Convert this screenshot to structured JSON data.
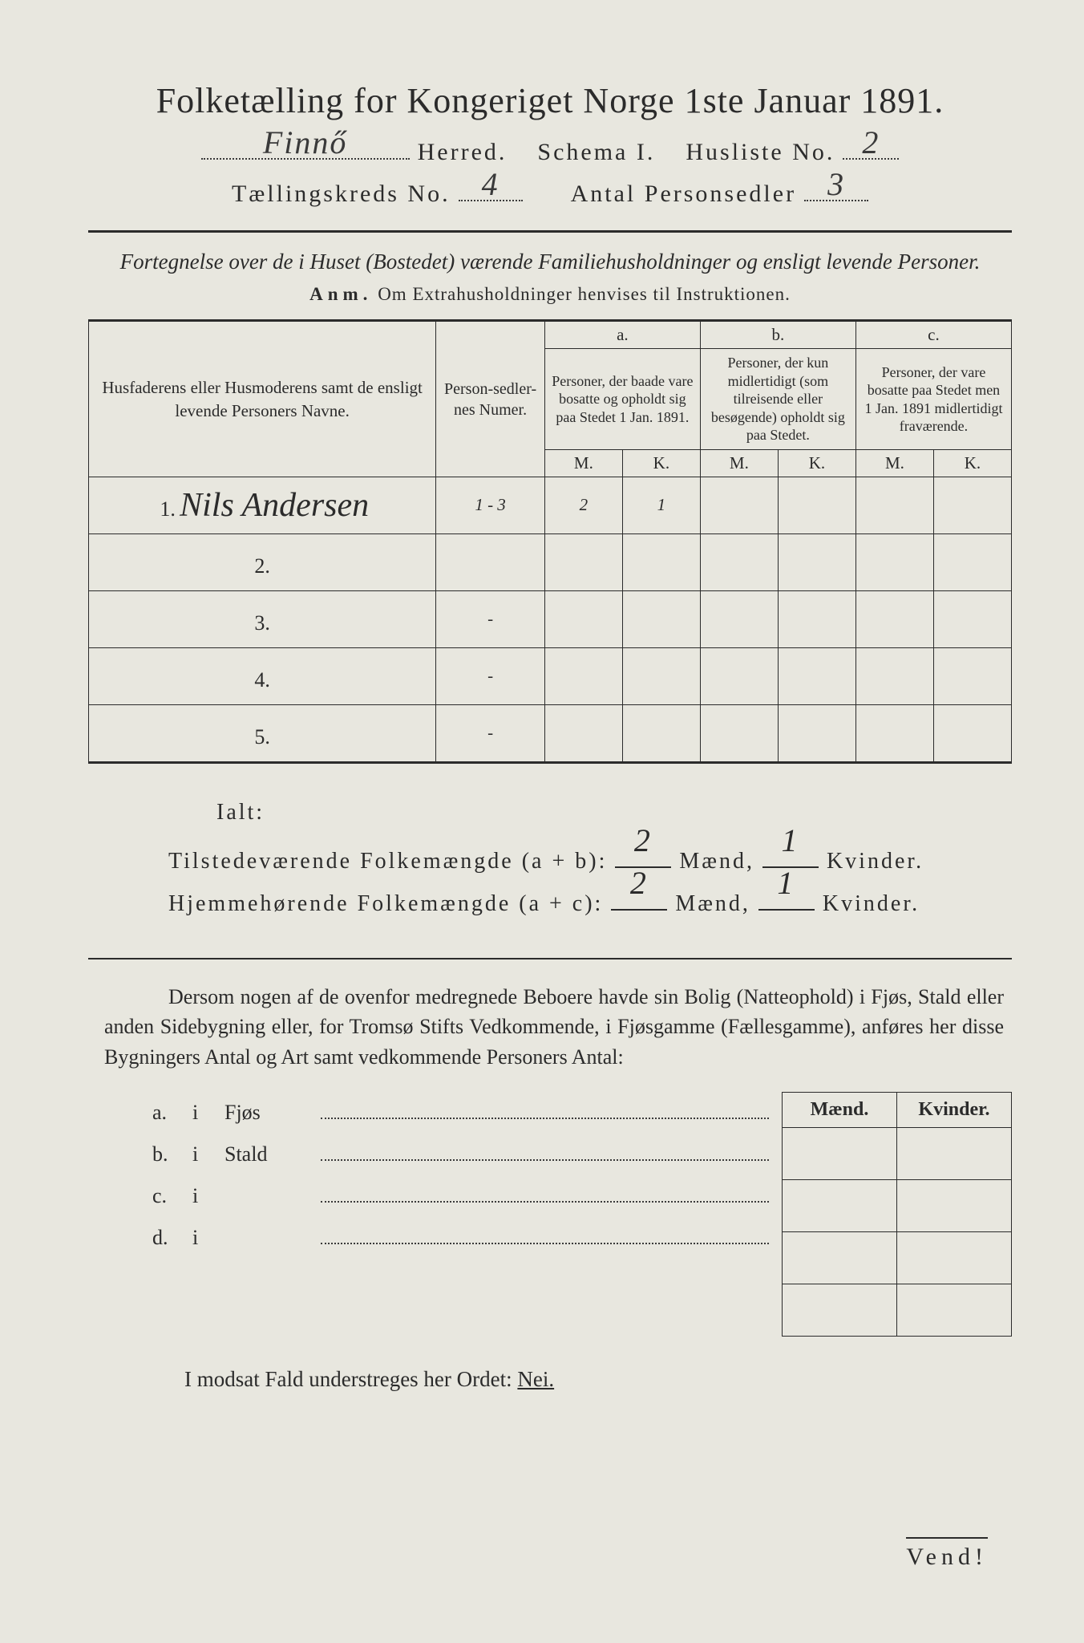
{
  "title": "Folketælling for Kongeriget Norge 1ste Januar 1891.",
  "header": {
    "herred_value": "Finnő",
    "herred_label": "Herred.",
    "schema_label": "Schema I.",
    "husliste_label": "Husliste No.",
    "husliste_value": "2",
    "kreds_label": "Tællingskreds No.",
    "kreds_value": "4",
    "antal_label": "Antal Personsedler",
    "antal_value": "3"
  },
  "subtitle": "Fortegnelse over de i Huset (Bostedet) værende Familiehusholdninger og ensligt levende Personer.",
  "anm_label": "Anm.",
  "anm_text": "Om Extrahusholdninger henvises til Instruktionen.",
  "table": {
    "col_names": "Husfaderens eller Husmoderens samt de ensligt levende Personers Navne.",
    "col_numer": "Person-sedler-nes Numer.",
    "col_a_label": "a.",
    "col_a_text": "Personer, der baade vare bosatte og opholdt sig paa Stedet 1 Jan. 1891.",
    "col_b_label": "b.",
    "col_b_text": "Personer, der kun midlertidigt (som tilreisende eller besøgende) opholdt sig paa Stedet.",
    "col_c_label": "c.",
    "col_c_text": "Personer, der vare bosatte paa Stedet men 1 Jan. 1891 midlertidigt fraværende.",
    "m": "M.",
    "k": "K.",
    "rows": [
      {
        "n": "1.",
        "name": "Nils Andersen",
        "numer": "1 - 3",
        "a_m": "2",
        "a_k": "1",
        "b_m": "",
        "b_k": "",
        "c_m": "",
        "c_k": ""
      },
      {
        "n": "2.",
        "name": "",
        "numer": "",
        "a_m": "",
        "a_k": "",
        "b_m": "",
        "b_k": "",
        "c_m": "",
        "c_k": ""
      },
      {
        "n": "3.",
        "name": "",
        "numer": "-",
        "a_m": "",
        "a_k": "",
        "b_m": "",
        "b_k": "",
        "c_m": "",
        "c_k": ""
      },
      {
        "n": "4.",
        "name": "",
        "numer": "-",
        "a_m": "",
        "a_k": "",
        "b_m": "",
        "b_k": "",
        "c_m": "",
        "c_k": ""
      },
      {
        "n": "5.",
        "name": "",
        "numer": "-",
        "a_m": "",
        "a_k": "",
        "b_m": "",
        "b_k": "",
        "c_m": "",
        "c_k": ""
      }
    ]
  },
  "totals": {
    "ialt": "Ialt:",
    "tilstede_label": "Tilstedeværende Folkemængde (a + b):",
    "hjemme_label": "Hjemmehørende Folkemængde (a + c):",
    "maend": "Mænd,",
    "kvinder": "Kvinder.",
    "tilstede_m": "2",
    "tilstede_k": "1",
    "hjemme_m": "2",
    "hjemme_k": "1"
  },
  "para": "Dersom nogen af de ovenfor medregnede Beboere havde sin Bolig (Natteophold) i Fjøs, Stald eller anden Sidebygning eller, for Tromsø Stifts Vedkommende, i Fjøsgamme (Fællesgamme), anføres her disse Bygningers Antal og Art samt vedkommende Personers Antal:",
  "buildings": {
    "maend": "Mænd.",
    "kvinder": "Kvinder.",
    "rows": [
      {
        "lab": "a.",
        "i": "i",
        "type": "Fjøs"
      },
      {
        "lab": "b.",
        "i": "i",
        "type": "Stald"
      },
      {
        "lab": "c.",
        "i": "i",
        "type": ""
      },
      {
        "lab": "d.",
        "i": "i",
        "type": ""
      }
    ]
  },
  "nei_line": "I modsat Fald understreges her Ordet:",
  "nei": "Nei.",
  "vend": "Vend!"
}
